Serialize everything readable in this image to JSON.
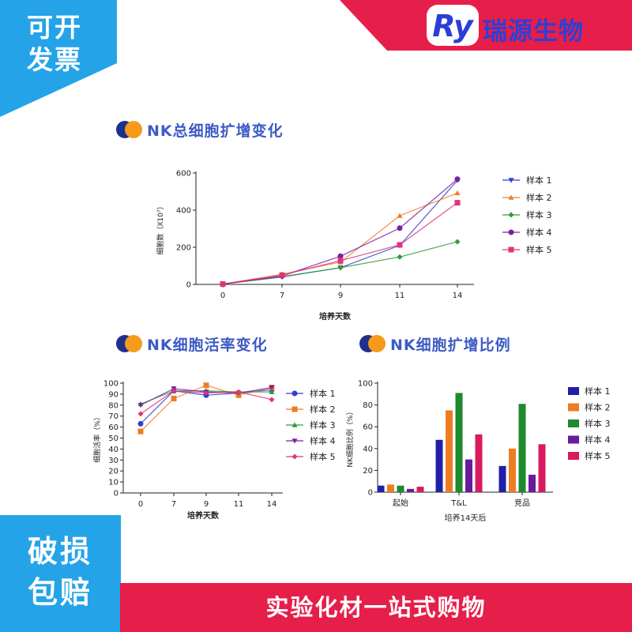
{
  "badge_top_left": {
    "line1": "可开",
    "line2": "发票"
  },
  "brand": {
    "logo_text": "Ry",
    "name": "瑞源生物"
  },
  "badge_bottom_left": {
    "line1": "破损",
    "line2": "包赔"
  },
  "bottom_banner": "实验化材一站式购物",
  "colors": {
    "cyan": "#24a3e8",
    "red": "#e61e4a",
    "brand_blue": "#2b3fd6",
    "title_blue": "#3d5bc4",
    "icon_orange": "#f59a1b",
    "icon_navy": "#1e2f8c"
  },
  "sections": [
    {
      "title": "NK总细胞扩增变化"
    },
    {
      "title": "NK细胞活率变化"
    },
    {
      "title": "NK细胞扩增比例"
    }
  ],
  "chart_data": [
    {
      "type": "line",
      "title": "NK总细胞扩增变化",
      "xlabel": "培养天数",
      "ylabel": "细胞数（X10⁷）",
      "x": [
        0,
        7,
        9,
        11,
        14
      ],
      "xticks": [
        "0",
        "7",
        "9",
        "11",
        "14"
      ],
      "ylim": [
        0,
        600
      ],
      "yticks": [
        0,
        200,
        400,
        600
      ],
      "legend_position": "right",
      "series": [
        {
          "name": "样本 1",
          "color": "#2d3fcf",
          "marker": "triangle-down",
          "values": [
            2,
            40,
            90,
            210,
            560
          ]
        },
        {
          "name": "样本 2",
          "color": "#f07c22",
          "marker": "triangle-up",
          "values": [
            2,
            55,
            120,
            370,
            492
          ]
        },
        {
          "name": "样本 3",
          "color": "#2f9a3b",
          "marker": "diamond",
          "values": [
            2,
            42,
            90,
            148,
            230
          ]
        },
        {
          "name": "样本 4",
          "color": "#7b1fa2",
          "marker": "circle",
          "values": [
            2,
            45,
            152,
            303,
            567
          ]
        },
        {
          "name": "样本 5",
          "color": "#e0337a",
          "marker": "square",
          "values": [
            2,
            50,
            128,
            213,
            440
          ]
        }
      ]
    },
    {
      "type": "line",
      "title": "NK细胞活率变化",
      "xlabel": "培养天数",
      "ylabel": "细胞活率（%）",
      "x": [
        0,
        7,
        9,
        11,
        14
      ],
      "xticks": [
        "0",
        "7",
        "9",
        "11",
        "14"
      ],
      "ylim": [
        0,
        100
      ],
      "yticks": [
        0,
        10,
        20,
        30,
        40,
        50,
        60,
        70,
        80,
        90,
        100
      ],
      "legend_position": "right",
      "series": [
        {
          "name": "样本 1",
          "color": "#2d3fcf",
          "marker": "circle",
          "values": [
            63,
            93,
            89,
            91,
            94
          ]
        },
        {
          "name": "样本 2",
          "color": "#f07c22",
          "marker": "square",
          "values": [
            56,
            86,
            98,
            89,
            96
          ]
        },
        {
          "name": "样本 3",
          "color": "#2f9a3b",
          "marker": "triangle-up",
          "values": [
            81,
            93,
            93,
            92,
            92
          ]
        },
        {
          "name": "样本 4",
          "color": "#7b1fa2",
          "marker": "triangle-down",
          "values": [
            80,
            95,
            92,
            91,
            96
          ]
        },
        {
          "name": "样本 5",
          "color": "#e0337a",
          "marker": "diamond",
          "values": [
            72,
            93,
            91,
            92,
            85
          ]
        }
      ]
    },
    {
      "type": "bar",
      "title": "NK细胞扩增比例",
      "xlabel": "培养14天后",
      "ylabel": "NK细胞比例（%）",
      "categories": [
        "起始",
        "T&L",
        "竞品"
      ],
      "ylim": [
        0,
        100
      ],
      "yticks": [
        0,
        20,
        40,
        60,
        80,
        100
      ],
      "legend_position": "right",
      "series": [
        {
          "name": "样本 1",
          "color": "#1f1fa8",
          "values": [
            6,
            48,
            24
          ]
        },
        {
          "name": "样本 2",
          "color": "#f07c22",
          "values": [
            7,
            75,
            40
          ]
        },
        {
          "name": "样本 3",
          "color": "#1e8a2e",
          "values": [
            6,
            91,
            81
          ]
        },
        {
          "name": "样本 4",
          "color": "#6a1b9a",
          "values": [
            3,
            30,
            16
          ]
        },
        {
          "name": "样本 5",
          "color": "#d81b60",
          "values": [
            5,
            53,
            44
          ]
        }
      ]
    }
  ]
}
